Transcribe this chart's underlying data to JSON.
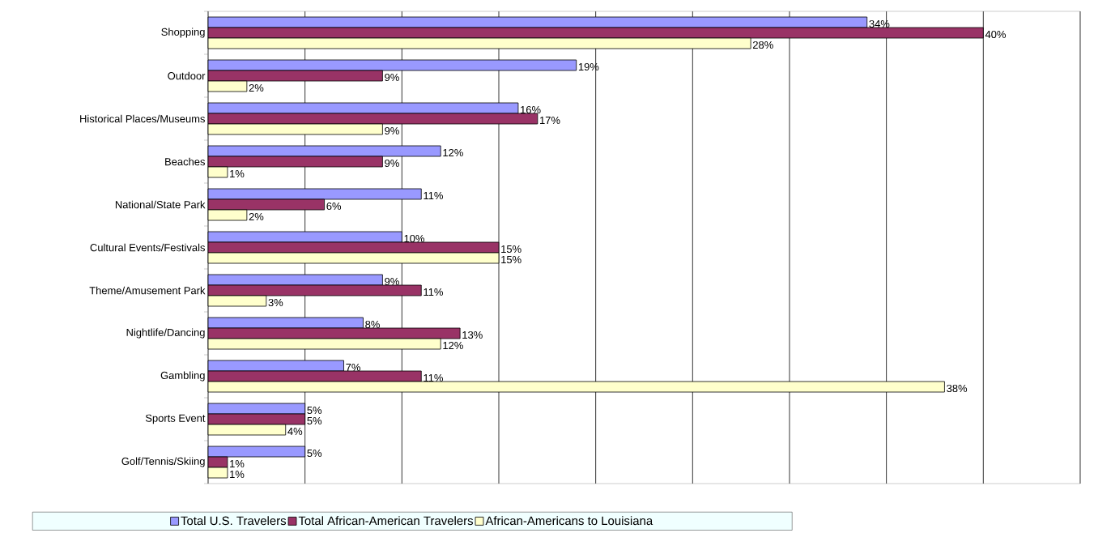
{
  "chart_data": {
    "type": "bar",
    "orientation": "horizontal",
    "categories": [
      "Shopping",
      "Outdoor",
      "Historical Places/Museums",
      "Beaches",
      "National/State Park",
      "Cultural Events/Festivals",
      "Theme/Amusement Park",
      "Nightlife/Dancing",
      "Gambling",
      "Sports Event",
      "Golf/Tennis/Skiing"
    ],
    "series": [
      {
        "name": "Total U.S. Travelers",
        "color": "#9999ff",
        "values": [
          34,
          19,
          16,
          12,
          11,
          10,
          9,
          8,
          7,
          5,
          5
        ],
        "value_labels": [
          "34%",
          "19%",
          "16%",
          "12%",
          "11%",
          "10%",
          "9%",
          "8%",
          "7%",
          "5%",
          "5%"
        ]
      },
      {
        "name": "Total African-American Travelers",
        "color": "#993366",
        "values": [
          40,
          9,
          17,
          9,
          6,
          15,
          11,
          13,
          11,
          5,
          1
        ],
        "value_labels": [
          "40%",
          "9%",
          "17%",
          "9%",
          "6%",
          "15%",
          "11%",
          "13%",
          "11%",
          "5%",
          "1%"
        ]
      },
      {
        "name": "African-Americans to Louisiana",
        "color": "#ffffcc",
        "values": [
          28,
          2,
          9,
          1,
          2,
          15,
          3,
          12,
          38,
          4,
          1
        ],
        "value_labels": [
          "28%",
          "2%",
          "9%",
          "1%",
          "2%",
          "15%",
          "3%",
          "12%",
          "38%",
          "4%",
          "1%"
        ]
      }
    ],
    "xlim": [
      0,
      45
    ],
    "xticks": [
      {
        "value": 0,
        "label": null
      },
      {
        "value": 5,
        "label": null
      },
      {
        "value": 10,
        "label": null
      },
      {
        "value": 15,
        "label": null
      },
      {
        "value": 20,
        "label": null
      },
      {
        "value": 25,
        "label": null
      },
      {
        "value": 30,
        "label": null
      },
      {
        "value": 35,
        "label": null
      },
      {
        "value": 40,
        "label": null
      },
      {
        "value": 45,
        "label": null
      }
    ],
    "tick_labels": "y",
    "grid": "x",
    "legend": "bottom"
  }
}
